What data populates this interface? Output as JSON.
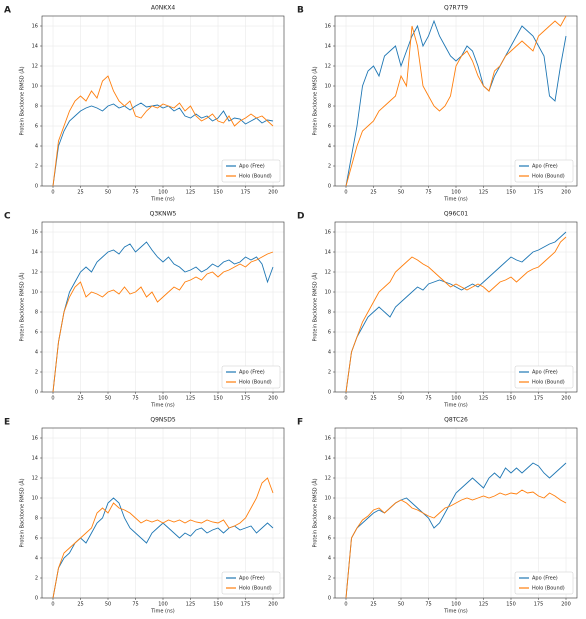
{
  "chart_data": [
    {
      "type": "line",
      "label": "A",
      "title": "A0NKX4",
      "xlabel": "Time (ns)",
      "ylabel": "Protein Backbone RMSD (Å)",
      "x": [
        0,
        5,
        10,
        15,
        20,
        25,
        30,
        35,
        40,
        45,
        50,
        55,
        60,
        65,
        70,
        75,
        80,
        85,
        90,
        95,
        100,
        105,
        110,
        115,
        120,
        125,
        130,
        135,
        140,
        145,
        150,
        155,
        160,
        165,
        170,
        175,
        180,
        185,
        190,
        195,
        200
      ],
      "series": [
        {
          "name": "Apo (Free)",
          "color": "#1f77b4",
          "values": [
            0,
            4,
            5.5,
            6.5,
            7,
            7.5,
            7.8,
            8,
            7.8,
            7.5,
            8,
            8.2,
            7.8,
            8,
            7.6,
            8,
            8.3,
            7.9,
            8,
            8.1,
            7.8,
            8,
            7.5,
            7.8,
            7,
            6.8,
            7.2,
            6.8,
            7,
            6.5,
            6.8,
            7.5,
            6.5,
            6.8,
            6.7,
            6.2,
            6.5,
            6.8,
            6.3,
            6.6,
            6.5
          ]
        },
        {
          "name": "Holo (Bound)",
          "color": "#ff7f0e",
          "values": [
            0,
            4.5,
            6,
            7.5,
            8.5,
            9,
            8.5,
            9.5,
            8.8,
            10.5,
            11,
            9.5,
            8.5,
            8,
            8.5,
            7,
            6.8,
            7.5,
            8,
            7.8,
            8.2,
            8,
            7.8,
            8.3,
            7.5,
            8,
            7,
            6.5,
            6.8,
            7.2,
            6.5,
            6.3,
            7,
            6,
            6.5,
            6.8,
            7.2,
            6.8,
            7,
            6.5,
            6
          ]
        }
      ],
      "xlim": [
        -10,
        210
      ],
      "xticks": [
        0,
        25,
        50,
        75,
        100,
        125,
        150,
        175,
        200
      ],
      "ylim": [
        0,
        17
      ],
      "yticks": [
        0,
        2,
        4,
        6,
        8,
        10,
        12,
        14,
        16
      ],
      "grid": true,
      "legend": "lower right"
    },
    {
      "type": "line",
      "label": "B",
      "title": "Q7R7T9",
      "xlabel": "Time (ns)",
      "ylabel": "Protein Backbone RMSD (Å)",
      "x": [
        0,
        5,
        10,
        15,
        20,
        25,
        30,
        35,
        40,
        45,
        50,
        55,
        60,
        65,
        70,
        75,
        80,
        85,
        90,
        95,
        100,
        105,
        110,
        115,
        120,
        125,
        130,
        135,
        140,
        145,
        150,
        155,
        160,
        165,
        170,
        175,
        180,
        185,
        190,
        195,
        200
      ],
      "series": [
        {
          "name": "Apo (Free)",
          "color": "#1f77b4",
          "values": [
            0,
            3,
            6,
            10,
            11.5,
            12,
            11,
            13,
            13.5,
            14,
            12,
            13.5,
            15,
            16,
            14,
            15,
            16.5,
            15,
            14,
            13,
            12.5,
            13,
            14,
            13.5,
            12,
            10,
            9.5,
            11,
            12,
            13,
            14,
            15,
            16,
            15.5,
            15,
            14,
            13,
            9,
            8.5,
            12,
            15
          ]
        },
        {
          "name": "Holo (Bound)",
          "color": "#ff7f0e",
          "values": [
            0,
            2,
            4,
            5.5,
            6,
            6.5,
            7.5,
            8,
            8.5,
            9,
            11,
            10,
            16,
            14,
            10,
            9,
            8,
            7.5,
            8,
            9,
            12,
            13,
            13.5,
            12.5,
            11,
            10,
            9.5,
            11.5,
            12,
            13,
            13.5,
            14,
            14.5,
            14,
            13.5,
            15,
            15.5,
            16,
            16.5,
            16,
            17
          ]
        }
      ],
      "xlim": [
        -10,
        210
      ],
      "xticks": [
        0,
        25,
        50,
        75,
        100,
        125,
        150,
        175,
        200
      ],
      "ylim": [
        0,
        17
      ],
      "yticks": [
        0,
        2,
        4,
        6,
        8,
        10,
        12,
        14,
        16
      ],
      "grid": true,
      "legend": "lower right"
    },
    {
      "type": "line",
      "label": "C",
      "title": "Q3KNW5",
      "xlabel": "Time (ns)",
      "ylabel": "Protein Backbone RMSD (Å)",
      "x": [
        0,
        5,
        10,
        15,
        20,
        25,
        30,
        35,
        40,
        45,
        50,
        55,
        60,
        65,
        70,
        75,
        80,
        85,
        90,
        95,
        100,
        105,
        110,
        115,
        120,
        125,
        130,
        135,
        140,
        145,
        150,
        155,
        160,
        165,
        170,
        175,
        180,
        185,
        190,
        195,
        200
      ],
      "series": [
        {
          "name": "Apo (Free)",
          "color": "#1f77b4",
          "values": [
            0,
            5,
            8,
            10,
            11,
            12,
            12.5,
            12,
            13,
            13.5,
            14,
            14.2,
            13.8,
            14.5,
            14.8,
            14,
            14.5,
            15,
            14.2,
            13.5,
            13,
            13.5,
            12.8,
            12.5,
            12,
            12.2,
            12.5,
            12,
            12.3,
            12.8,
            12.5,
            13,
            13.2,
            12.8,
            13,
            13.5,
            13.2,
            13.5,
            12.8,
            11,
            12.5
          ]
        },
        {
          "name": "Holo (Bound)",
          "color": "#ff7f0e",
          "values": [
            0,
            5,
            8,
            9.5,
            10.5,
            11,
            9.5,
            10,
            9.8,
            9.5,
            10,
            10.2,
            9.8,
            10.5,
            9.8,
            10,
            10.5,
            9.5,
            10,
            9,
            9.5,
            10,
            10.5,
            10.2,
            11,
            11.2,
            11.5,
            11.2,
            11.8,
            12,
            11.5,
            12,
            12.2,
            12.5,
            12.8,
            12.5,
            13,
            13.2,
            13.5,
            13.8,
            14
          ]
        }
      ],
      "xlim": [
        -10,
        210
      ],
      "xticks": [
        0,
        25,
        50,
        75,
        100,
        125,
        150,
        175,
        200
      ],
      "ylim": [
        0,
        17
      ],
      "yticks": [
        0,
        2,
        4,
        6,
        8,
        10,
        12,
        14,
        16
      ],
      "grid": true,
      "legend": "lower right"
    },
    {
      "type": "line",
      "label": "D",
      "title": "Q96C01",
      "xlabel": "Time (ns)",
      "ylabel": "Protein Backbone RMSD (Å)",
      "x": [
        0,
        5,
        10,
        15,
        20,
        25,
        30,
        35,
        40,
        45,
        50,
        55,
        60,
        65,
        70,
        75,
        80,
        85,
        90,
        95,
        100,
        105,
        110,
        115,
        120,
        125,
        130,
        135,
        140,
        145,
        150,
        155,
        160,
        165,
        170,
        175,
        180,
        185,
        190,
        195,
        200
      ],
      "series": [
        {
          "name": "Apo (Free)",
          "color": "#1f77b4",
          "values": [
            0,
            4,
            5.5,
            6.5,
            7.5,
            8,
            8.5,
            8,
            7.5,
            8.5,
            9,
            9.5,
            10,
            10.5,
            10.2,
            10.8,
            11,
            11.2,
            11,
            10.8,
            10.5,
            10.2,
            10.5,
            10.8,
            10.5,
            11,
            11.5,
            12,
            12.5,
            13,
            13.5,
            13.2,
            13,
            13.5,
            14,
            14.2,
            14.5,
            14.8,
            15,
            15.5,
            16
          ]
        },
        {
          "name": "Holo (Bound)",
          "color": "#ff7f0e",
          "values": [
            0,
            4,
            5.5,
            7,
            8,
            9,
            10,
            10.5,
            11,
            12,
            12.5,
            13,
            13.5,
            13.2,
            12.8,
            12.5,
            12,
            11.5,
            11,
            10.5,
            10.8,
            10.5,
            10.2,
            10.5,
            10.8,
            10.5,
            10,
            10.5,
            11,
            11.2,
            11.5,
            11,
            11.5,
            12,
            12.3,
            12.5,
            13,
            13.5,
            14,
            15,
            15.5
          ]
        }
      ],
      "xlim": [
        -10,
        210
      ],
      "xticks": [
        0,
        25,
        50,
        75,
        100,
        125,
        150,
        175,
        200
      ],
      "ylim": [
        0,
        17
      ],
      "yticks": [
        0,
        2,
        4,
        6,
        8,
        10,
        12,
        14,
        16
      ],
      "grid": true,
      "legend": "lower right"
    },
    {
      "type": "line",
      "label": "E",
      "title": "Q9NSD5",
      "xlabel": "Time (ns)",
      "ylabel": "Protein Backbone RMSD (Å)",
      "x": [
        0,
        5,
        10,
        15,
        20,
        25,
        30,
        35,
        40,
        45,
        50,
        55,
        60,
        65,
        70,
        75,
        80,
        85,
        90,
        95,
        100,
        105,
        110,
        115,
        120,
        125,
        130,
        135,
        140,
        145,
        150,
        155,
        160,
        165,
        170,
        175,
        180,
        185,
        190,
        195,
        200
      ],
      "series": [
        {
          "name": "Apo (Free)",
          "color": "#1f77b4",
          "values": [
            0,
            3,
            4,
            4.5,
            5.5,
            6,
            5.5,
            6.5,
            7.5,
            8,
            9.5,
            10,
            9.5,
            8,
            7,
            6.5,
            6,
            5.5,
            6.5,
            7,
            7.5,
            7,
            6.5,
            6,
            6.5,
            6.2,
            6.8,
            7,
            6.5,
            6.8,
            7,
            6.5,
            7,
            7.2,
            6.8,
            7,
            7.2,
            6.5,
            7,
            7.5,
            7
          ]
        },
        {
          "name": "Holo (Bound)",
          "color": "#ff7f0e",
          "values": [
            0,
            3,
            4.5,
            5,
            5.5,
            6,
            6.5,
            7,
            8.5,
            9,
            8.5,
            9.5,
            9,
            8.8,
            8.5,
            8,
            7.5,
            7.8,
            7.6,
            7.8,
            7.5,
            7.8,
            7.6,
            7.8,
            7.5,
            7.8,
            7.6,
            7.5,
            7.8,
            7.6,
            7.5,
            7.8,
            7,
            7.2,
            7.5,
            8,
            9,
            10,
            11.5,
            12,
            10.5
          ]
        }
      ],
      "xlim": [
        -10,
        210
      ],
      "xticks": [
        0,
        25,
        50,
        75,
        100,
        125,
        150,
        175,
        200
      ],
      "ylim": [
        0,
        17
      ],
      "yticks": [
        0,
        2,
        4,
        6,
        8,
        10,
        12,
        14,
        16
      ],
      "grid": true,
      "legend": "lower right"
    },
    {
      "type": "line",
      "label": "F",
      "title": "Q8TC26",
      "xlabel": "Time (ns)",
      "ylabel": "Protein Backbone RMSD (Å)",
      "x": [
        0,
        5,
        10,
        15,
        20,
        25,
        30,
        35,
        40,
        45,
        50,
        55,
        60,
        65,
        70,
        75,
        80,
        85,
        90,
        95,
        100,
        105,
        110,
        115,
        120,
        125,
        130,
        135,
        140,
        145,
        150,
        155,
        160,
        165,
        170,
        175,
        180,
        185,
        190,
        195,
        200
      ],
      "series": [
        {
          "name": "Apo (Free)",
          "color": "#1f77b4",
          "values": [
            0,
            6,
            7,
            7.5,
            8,
            8.5,
            8.8,
            8.5,
            9,
            9.5,
            9.8,
            10,
            9.5,
            9,
            8.5,
            8,
            7,
            7.5,
            8.5,
            9.5,
            10.5,
            11,
            11.5,
            12,
            11.5,
            11,
            12,
            12.5,
            12,
            13,
            12.5,
            13,
            12.5,
            13,
            13.5,
            13.2,
            12.5,
            12,
            12.5,
            13,
            13.5
          ]
        },
        {
          "name": "Holo (Bound)",
          "color": "#ff7f0e",
          "values": [
            0,
            6,
            7,
            7.8,
            8.2,
            8.8,
            9,
            8.5,
            9,
            9.5,
            9.8,
            9.5,
            9,
            8.8,
            8.5,
            8.2,
            8,
            8.5,
            9,
            9.2,
            9.5,
            9.8,
            10,
            9.8,
            10,
            10.2,
            10,
            10.2,
            10.5,
            10.3,
            10.5,
            10.4,
            10.8,
            10.5,
            10.6,
            10.2,
            10,
            10.5,
            10.2,
            9.8,
            9.5
          ]
        }
      ],
      "xlim": [
        -10,
        210
      ],
      "xticks": [
        0,
        25,
        50,
        75,
        100,
        125,
        150,
        175,
        200
      ],
      "ylim": [
        0,
        17
      ],
      "yticks": [
        0,
        2,
        4,
        6,
        8,
        10,
        12,
        14,
        16
      ],
      "grid": true,
      "legend": "lower right"
    }
  ]
}
